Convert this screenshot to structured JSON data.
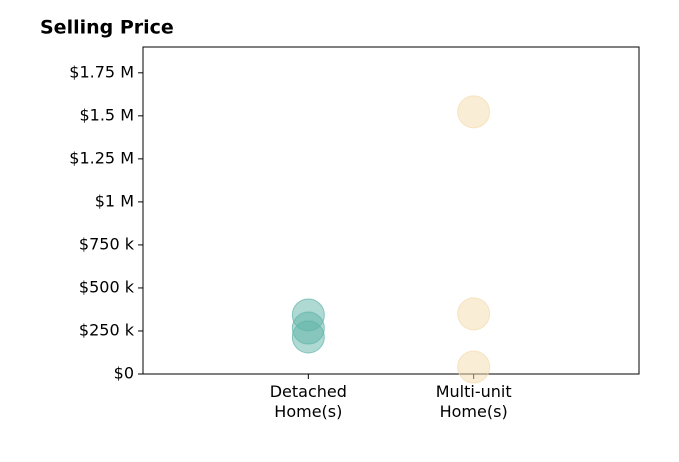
{
  "chart_data": {
    "type": "scatter",
    "title": "Selling Price",
    "categories": [
      "Detached\nHome(s)",
      "Multi-unit\nHome(s)"
    ],
    "values": [
      [
        343000,
        267000,
        215000
      ],
      [
        1523000,
        349000,
        41000
      ]
    ],
    "colors": [
      "#5fb3a8",
      "#f3dcae"
    ],
    "ylim": [
      0,
      1900000
    ],
    "yticks": [
      {
        "value": 0,
        "label": "$0"
      },
      {
        "value": 250000,
        "label": "$250 k"
      },
      {
        "value": 500000,
        "label": "$500 k"
      },
      {
        "value": 750000,
        "label": "$750 k"
      },
      {
        "value": 1000000,
        "label": "$1 M"
      },
      {
        "value": 1250000,
        "label": "$1.25 M"
      },
      {
        "value": 1500000,
        "label": "$1.5 M"
      },
      {
        "value": 1750000,
        "label": "$1.75 M"
      }
    ]
  }
}
